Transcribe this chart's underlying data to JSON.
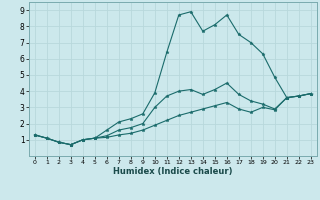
{
  "xlabel": "Humidex (Indice chaleur)",
  "xlim": [
    -0.5,
    23.5
  ],
  "ylim": [
    0,
    9.5
  ],
  "xticks": [
    0,
    1,
    2,
    3,
    4,
    5,
    6,
    7,
    8,
    9,
    10,
    11,
    12,
    13,
    14,
    15,
    16,
    17,
    18,
    19,
    20,
    21,
    22,
    23
  ],
  "yticks": [
    1,
    2,
    3,
    4,
    5,
    6,
    7,
    8,
    9
  ],
  "bg_color": "#cce8ec",
  "grid_color": "#b8d8dc",
  "line_color": "#1a6b6b",
  "line1_x": [
    0,
    1,
    2,
    3,
    4,
    5,
    6,
    7,
    8,
    9,
    10,
    11,
    12,
    13,
    14,
    15,
    16,
    17,
    18,
    19,
    20,
    21,
    22,
    23
  ],
  "line1_y": [
    1.3,
    1.1,
    0.85,
    0.7,
    1.0,
    1.1,
    1.6,
    2.1,
    2.3,
    2.6,
    3.9,
    6.4,
    8.7,
    8.9,
    7.7,
    8.1,
    8.7,
    7.5,
    7.0,
    6.3,
    4.85,
    3.6,
    3.7,
    3.85
  ],
  "line2_x": [
    0,
    1,
    2,
    3,
    4,
    5,
    6,
    7,
    8,
    9,
    10,
    11,
    12,
    13,
    14,
    15,
    16,
    17,
    18,
    19,
    20,
    21,
    22,
    23
  ],
  "line2_y": [
    1.3,
    1.1,
    0.85,
    0.7,
    1.0,
    1.1,
    1.25,
    1.6,
    1.75,
    2.0,
    3.0,
    3.7,
    4.0,
    4.1,
    3.8,
    4.1,
    4.5,
    3.8,
    3.4,
    3.2,
    2.9,
    3.6,
    3.7,
    3.85
  ],
  "line3_x": [
    0,
    1,
    2,
    3,
    4,
    5,
    6,
    7,
    8,
    9,
    10,
    11,
    12,
    13,
    14,
    15,
    16,
    17,
    18,
    19,
    20,
    21,
    22,
    23
  ],
  "line3_y": [
    1.3,
    1.1,
    0.85,
    0.7,
    1.0,
    1.1,
    1.15,
    1.3,
    1.4,
    1.6,
    1.9,
    2.2,
    2.5,
    2.7,
    2.9,
    3.1,
    3.3,
    2.9,
    2.7,
    3.0,
    2.85,
    3.6,
    3.7,
    3.85
  ]
}
